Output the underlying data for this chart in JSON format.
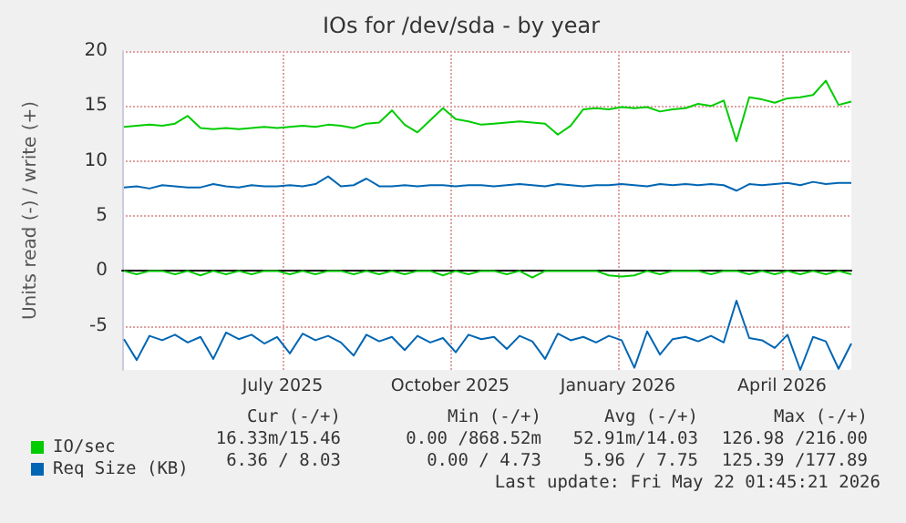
{
  "chart_data": {
    "type": "line",
    "title": "IOs for /dev/sda - by year",
    "ylabel": "Units read (-) / write (+)",
    "x": [
      "2025-04-05",
      "2025-04-12",
      "2025-04-19",
      "2025-04-26",
      "2025-05-03",
      "2025-05-10",
      "2025-05-17",
      "2025-05-24",
      "2025-05-31",
      "2025-06-07",
      "2025-06-14",
      "2025-06-21",
      "2025-06-28",
      "2025-07-05",
      "2025-07-12",
      "2025-07-19",
      "2025-07-26",
      "2025-08-02",
      "2025-08-09",
      "2025-08-16",
      "2025-08-23",
      "2025-08-30",
      "2025-09-06",
      "2025-09-13",
      "2025-09-20",
      "2025-09-27",
      "2025-10-04",
      "2025-10-11",
      "2025-10-18",
      "2025-10-25",
      "2025-11-01",
      "2025-11-08",
      "2025-11-15",
      "2025-11-22",
      "2025-11-29",
      "2025-12-06",
      "2025-12-13",
      "2025-12-20",
      "2025-12-27",
      "2026-01-03",
      "2026-01-10",
      "2026-01-17",
      "2026-01-24",
      "2026-01-31",
      "2026-02-07",
      "2026-02-14",
      "2026-02-21",
      "2026-02-28",
      "2026-03-07",
      "2026-03-14",
      "2026-03-21",
      "2026-03-28",
      "2026-04-04",
      "2026-04-11",
      "2026-04-18",
      "2026-04-25",
      "2026-05-02",
      "2026-05-09"
    ],
    "series": [
      {
        "name": "IO/sec",
        "color": "#00cc00",
        "values": [
          13.1,
          13.2,
          13.3,
          13.2,
          13.4,
          14.1,
          13.0,
          12.9,
          13.0,
          12.9,
          13.0,
          13.1,
          13.0,
          13.1,
          13.2,
          13.1,
          13.3,
          13.2,
          13.0,
          13.4,
          13.5,
          14.6,
          13.3,
          12.6,
          13.7,
          14.8,
          13.8,
          13.6,
          13.3,
          13.4,
          13.5,
          13.6,
          13.5,
          13.4,
          12.4,
          13.2,
          14.7,
          14.8,
          14.7,
          14.9,
          14.8,
          14.9,
          14.5,
          14.7,
          14.8,
          15.2,
          15.0,
          15.5,
          11.8,
          15.8,
          15.6,
          15.3,
          15.7,
          15.8,
          16.0,
          17.3,
          15.1,
          15.4
        ]
      },
      {
        "color": "#00cc00",
        "values": [
          0,
          -0.3,
          0,
          0,
          -0.3,
          0,
          -0.4,
          0,
          -0.3,
          0,
          -0.3,
          0,
          0,
          -0.3,
          0,
          -0.3,
          0,
          0,
          -0.3,
          0,
          -0.3,
          0,
          -0.3,
          0,
          0,
          -0.4,
          0,
          -0.3,
          0,
          0,
          -0.3,
          0,
          -0.6,
          0,
          0,
          0,
          0,
          0,
          -0.4,
          -0.5,
          -0.4,
          0,
          -0.3,
          0,
          0,
          0,
          -0.3,
          0,
          0,
          -0.3,
          0,
          -0.3,
          0,
          -0.3,
          0,
          -0.3,
          0,
          -0.3
        ]
      },
      {
        "name": "Req Size (KB)",
        "color": "#0066b3",
        "values": [
          7.6,
          7.7,
          7.5,
          7.8,
          7.7,
          7.6,
          7.6,
          7.9,
          7.7,
          7.6,
          7.8,
          7.7,
          7.7,
          7.8,
          7.7,
          7.9,
          8.6,
          7.7,
          7.8,
          8.4,
          7.7,
          7.7,
          7.8,
          7.7,
          7.8,
          7.8,
          7.7,
          7.8,
          7.8,
          7.7,
          7.8,
          7.9,
          7.8,
          7.7,
          7.9,
          7.8,
          7.7,
          7.8,
          7.8,
          7.9,
          7.8,
          7.7,
          7.9,
          7.8,
          7.9,
          7.8,
          7.9,
          7.8,
          7.3,
          7.9,
          7.8,
          7.9,
          8.0,
          7.8,
          8.1,
          7.9,
          8.0,
          8.0
        ]
      },
      {
        "color": "#0066b3",
        "values": [
          -6.2,
          -8.1,
          -5.9,
          -6.3,
          -5.8,
          -6.5,
          -6.0,
          -8.0,
          -5.6,
          -6.2,
          -5.8,
          -6.6,
          -6.0,
          -7.5,
          -5.7,
          -6.3,
          -5.9,
          -6.5,
          -7.7,
          -5.8,
          -6.4,
          -6.0,
          -7.2,
          -5.9,
          -6.5,
          -6.1,
          -7.4,
          -5.8,
          -6.2,
          -6.0,
          -7.1,
          -5.9,
          -6.4,
          -8.0,
          -5.7,
          -6.3,
          -6.0,
          -6.5,
          -5.9,
          -6.3,
          -8.8,
          -5.5,
          -7.6,
          -6.2,
          -6.0,
          -6.4,
          -5.9,
          -6.5,
          -2.7,
          -6.1,
          -6.3,
          -7.0,
          -5.8,
          -9.0,
          -6.0,
          -6.4,
          -8.9,
          -6.6
        ]
      }
    ],
    "xlim": [
      "2025-04-04",
      "2026-05-09"
    ],
    "xticks": [
      {
        "value": "2025-07-01",
        "label": "July 2025"
      },
      {
        "value": "2025-10-01",
        "label": "October 2025"
      },
      {
        "value": "2026-01-01",
        "label": "January 2026"
      },
      {
        "value": "2026-04-01",
        "label": "April 2026"
      }
    ],
    "ylim": [
      -9,
      20
    ],
    "yticks": [
      -5,
      0,
      5,
      10,
      15,
      20
    ],
    "grid": true,
    "legend": "bottom left",
    "marker": "none",
    "line_style": "solid",
    "annotations": [
      "Cur (-/+)",
      "Min (-/+)",
      "Avg (-/+)",
      "Max (-/+)",
      "16.33m/15.46",
      "0.00 /868.52m",
      "52.91m/14.03",
      "126.98 /216.00",
      "6.36 / 8.03",
      "0.00 / 4.73",
      "5.96 / 7.75",
      "125.39 /177.89",
      "Last update: Fri May 22 01:45:21 2026"
    ]
  }
}
